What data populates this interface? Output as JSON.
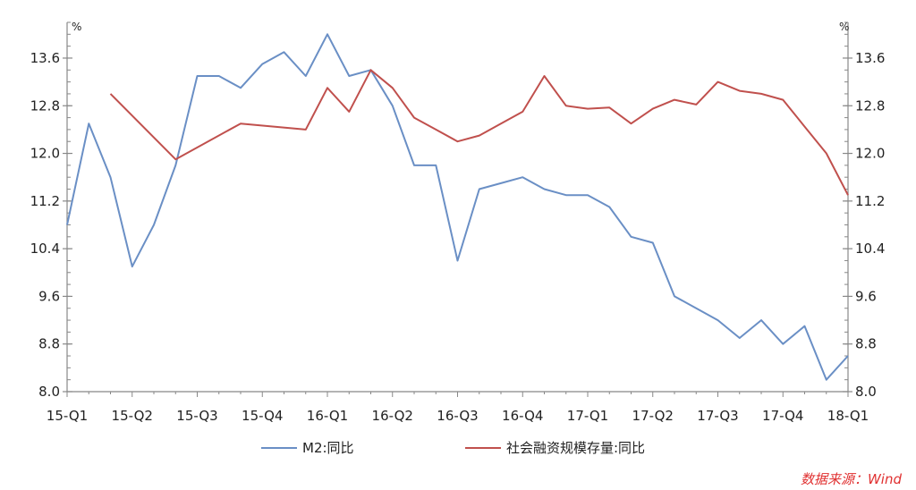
{
  "chart_data": {
    "type": "line",
    "title": "",
    "xlabel": "",
    "ylabel_left": "%",
    "ylabel_right": "%",
    "ylim": [
      8.0,
      14.2
    ],
    "yticks": [
      "8.0",
      "8.8",
      "9.6",
      "10.4",
      "11.2",
      "12.0",
      "12.8",
      "13.6"
    ],
    "x_tick_labels": [
      "15-Q1",
      "15-Q2",
      "15-Q3",
      "15-Q4",
      "16-Q1",
      "16-Q2",
      "16-Q3",
      "16-Q4",
      "17-Q1",
      "17-Q2",
      "17-Q3",
      "17-Q4",
      "18-Q1"
    ],
    "x": [
      "2015-01",
      "2015-02",
      "2015-03",
      "2015-04",
      "2015-05",
      "2015-06",
      "2015-07",
      "2015-08",
      "2015-09",
      "2015-10",
      "2015-11",
      "2015-12",
      "2016-01",
      "2016-02",
      "2016-03",
      "2016-04",
      "2016-05",
      "2016-06",
      "2016-07",
      "2016-08",
      "2016-09",
      "2016-10",
      "2016-11",
      "2016-12",
      "2017-01",
      "2017-02",
      "2017-03",
      "2017-04",
      "2017-05",
      "2017-06",
      "2017-07",
      "2017-08",
      "2017-09",
      "2017-10",
      "2017-11",
      "2017-12",
      "2018-01"
    ],
    "series": [
      {
        "name": "M2:同比",
        "color": "#6a8fc5",
        "values": [
          10.8,
          12.5,
          11.6,
          10.1,
          10.8,
          11.8,
          13.3,
          13.3,
          13.1,
          13.5,
          13.7,
          13.3,
          14.0,
          13.3,
          13.4,
          12.8,
          11.8,
          11.8,
          10.2,
          11.4,
          11.5,
          11.6,
          11.4,
          11.3,
          11.3,
          11.1,
          10.6,
          10.5,
          9.6,
          9.4,
          9.2,
          8.9,
          9.2,
          8.8,
          9.1,
          8.2,
          8.6
        ]
      },
      {
        "name": "社会融资规模存量:同比",
        "color": "#c0504d",
        "values": [
          null,
          null,
          13.0,
          null,
          null,
          11.9,
          null,
          null,
          12.5,
          null,
          null,
          12.4,
          13.1,
          12.7,
          13.4,
          13.1,
          12.6,
          12.4,
          12.2,
          12.3,
          12.5,
          12.7,
          13.3,
          12.8,
          12.75,
          12.77,
          12.5,
          12.75,
          12.9,
          12.82,
          13.2,
          13.05,
          13.0,
          12.9,
          12.45,
          12.0,
          11.3
        ]
      }
    ],
    "grid": false,
    "legend_position": "bottom"
  },
  "legend": {
    "m2_label": "M2:同比",
    "tsf_label": "社会融资规模存量:同比"
  },
  "source": {
    "text": "数据来源：Wind",
    "color": "#e03030"
  },
  "axis_color": "#888888"
}
